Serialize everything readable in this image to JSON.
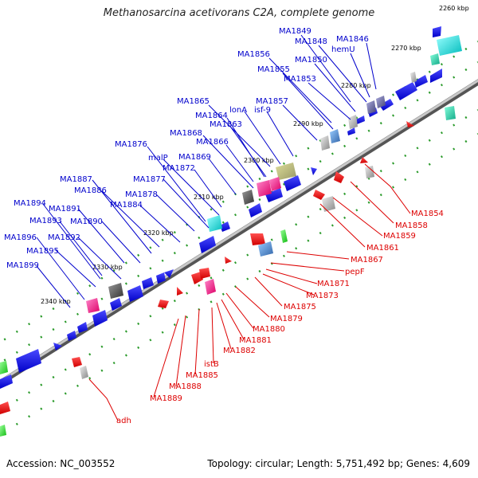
{
  "title": "Methanosarcina acetivorans C2A, complete genome",
  "footer": {
    "accession": "Accession: NC_003552",
    "stats": "Topology: circular; Length: 5,751,492 bp; Genes: 4,609"
  },
  "colors": {
    "forward_label": "#0000cc",
    "reverse_label": "#dd0000",
    "backbone": "#777777",
    "tick": "#2a9a2a",
    "cds_forward": "#0000ee",
    "cds_reverse": "#ee0000"
  },
  "scale_ticks": [
    "2260 kbp",
    "2270 kbp",
    "2280 kbp",
    "2290 kbp",
    "2300 kbp",
    "2310 kbp",
    "2320 kbp",
    "2330 kbp",
    "2340 kbp"
  ],
  "forward_labels": [
    "MA1849",
    "MA1848",
    "MA1846",
    "hemU",
    "MA1856",
    "MA1850",
    "MA1855",
    "MA1853",
    "MA1865",
    "MA1857",
    "lonA",
    "isf-9",
    "MA1864",
    "MA1863",
    "MA1868",
    "MA1876",
    "MA1866",
    "malP",
    "MA1869",
    "MA1872",
    "MA1877",
    "MA1887",
    "MA1886",
    "MA1878",
    "MA1894",
    "MA1884",
    "MA1891",
    "MA1890",
    "MA1893",
    "MA1896",
    "MA1892",
    "MA1895",
    "MA1899"
  ],
  "reverse_labels": [
    "MA1854",
    "MA1858",
    "MA1859",
    "MA1861",
    "MA1867",
    "pepF",
    "MA1871",
    "MA1873",
    "MA1875",
    "MA1879",
    "MA1880",
    "MA1881",
    "MA1882",
    "istB",
    "MA1885",
    "MA1888",
    "MA1889",
    "adh"
  ]
}
